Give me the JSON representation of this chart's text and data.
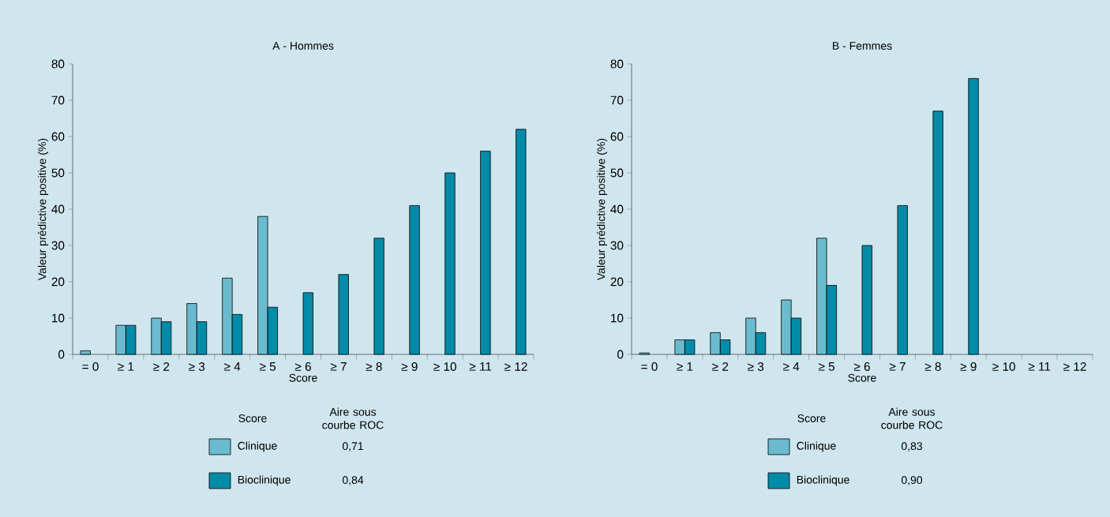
{
  "chart_data": [
    {
      "type": "bar",
      "title": "A - Hommes",
      "xlabel": "Score",
      "ylabel": "Valeur prédictive positive (%)",
      "categories": [
        "= 0",
        "≥ 1",
        "≥ 2",
        "≥ 3",
        "≥ 4",
        "≥ 5",
        "≥ 6",
        "≥ 7",
        "≥ 8",
        "≥ 9",
        "≥ 10",
        "≥ 11",
        "≥ 12"
      ],
      "series": [
        {
          "name": "Clinique",
          "color": "#6bbbd0",
          "values": [
            1,
            8,
            10,
            14,
            21,
            38,
            null,
            null,
            null,
            null,
            null,
            null,
            null
          ]
        },
        {
          "name": "Bioclinique",
          "color": "#008ba8",
          "values": [
            null,
            8,
            9,
            9,
            11,
            13,
            17,
            22,
            32,
            41,
            50,
            56,
            62
          ]
        }
      ],
      "ylim": [
        0,
        80
      ],
      "yticks": [
        0,
        10,
        20,
        30,
        40,
        50,
        60,
        70,
        80
      ],
      "legend": "bottom",
      "legend_title": "Score",
      "annotations": [
        "Aire sous courbe ROC",
        "0,71",
        "0,84"
      ]
    },
    {
      "type": "bar",
      "title": "B - Femmes",
      "xlabel": "Score",
      "ylabel": "Valeur prédictive positive (%)",
      "categories": [
        "= 0",
        "≥ 1",
        "≥ 2",
        "≥ 3",
        "≥ 4",
        "≥ 5",
        "≥ 6",
        "≥ 7",
        "≥ 8",
        "≥ 9",
        "≥ 10",
        "≥ 11",
        "≥ 12"
      ],
      "series": [
        {
          "name": "Clinique",
          "color": "#6bbbd0",
          "values": [
            0.4,
            4,
            6,
            10,
            15,
            32,
            null,
            null,
            null,
            null,
            null,
            null,
            null
          ]
        },
        {
          "name": "Bioclinique",
          "color": "#008ba8",
          "values": [
            null,
            4,
            4,
            6,
            10,
            19,
            30,
            41,
            67,
            76,
            null,
            null,
            null
          ]
        }
      ],
      "ylim": [
        0,
        80
      ],
      "yticks": [
        0,
        10,
        20,
        30,
        40,
        50,
        60,
        70,
        80
      ],
      "legend": "bottom",
      "legend_title": "Score",
      "annotations": [
        "Aire sous courbe ROC",
        "0,83",
        "0,90"
      ]
    }
  ]
}
